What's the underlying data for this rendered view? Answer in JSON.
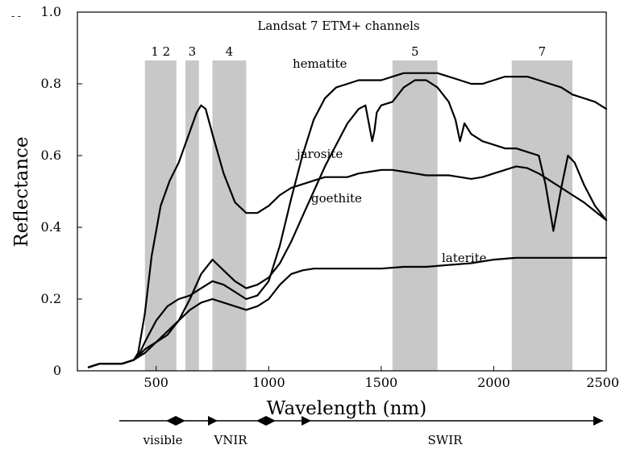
{
  "chart_data": {
    "type": "line",
    "title": "Landsat 7 ETM+ channels",
    "xlabel": "Wavelength (nm)",
    "ylabel": "Reflectance",
    "xlim": [
      150,
      2500
    ],
    "ylim": [
      0,
      1.0
    ],
    "xticks": [
      500,
      1000,
      1500,
      2000,
      2500
    ],
    "yticks": [
      0,
      0.2,
      0.4,
      0.6,
      0.8,
      1.0
    ],
    "xtick_labels": [
      "500",
      "1000",
      "1500",
      "2000",
      "2500"
    ],
    "ytick_labels": [
      "0",
      "0.2",
      "0.4",
      "0.6",
      "0.8",
      "1.0"
    ],
    "grid": false,
    "line_color": "#000000",
    "band_color": "#c8c8c8",
    "bands": [
      {
        "label": "1 2",
        "start": 450,
        "end": 590
      },
      {
        "label": "3",
        "start": 630,
        "end": 690
      },
      {
        "label": "4",
        "start": 750,
        "end": 900
      },
      {
        "label": "5",
        "start": 1550,
        "end": 1750
      },
      {
        "label": "7",
        "start": 2080,
        "end": 2350
      }
    ],
    "series": [
      {
        "name": "hematite",
        "x": [
          200,
          250,
          300,
          350,
          400,
          420,
          450,
          500,
          550,
          600,
          650,
          700,
          750,
          800,
          850,
          900,
          950,
          1000,
          1050,
          1100,
          1150,
          1200,
          1250,
          1300,
          1350,
          1400,
          1450,
          1500,
          1550,
          1600,
          1650,
          1700,
          1750,
          1800,
          1850,
          1900,
          1950,
          2000,
          2050,
          2100,
          2150,
          2200,
          2250,
          2300,
          2350,
          2400,
          2450,
          2500
        ],
        "y": [
          0.01,
          0.02,
          0.02,
          0.02,
          0.03,
          0.04,
          0.08,
          0.14,
          0.18,
          0.2,
          0.21,
          0.23,
          0.25,
          0.24,
          0.22,
          0.2,
          0.21,
          0.25,
          0.35,
          0.48,
          0.6,
          0.7,
          0.76,
          0.79,
          0.8,
          0.81,
          0.81,
          0.81,
          0.82,
          0.83,
          0.83,
          0.83,
          0.83,
          0.82,
          0.81,
          0.8,
          0.8,
          0.81,
          0.82,
          0.82,
          0.82,
          0.81,
          0.8,
          0.79,
          0.77,
          0.76,
          0.75,
          0.73
        ]
      },
      {
        "name": "jarosite",
        "x": [
          200,
          250,
          300,
          350,
          400,
          420,
          450,
          500,
          550,
          600,
          650,
          700,
          750,
          800,
          850,
          900,
          950,
          1000,
          1050,
          1100,
          1150,
          1200,
          1250,
          1300,
          1350,
          1400,
          1430,
          1460,
          1470,
          1480,
          1500,
          1550,
          1600,
          1650,
          1700,
          1750,
          1800,
          1830,
          1850,
          1870,
          1900,
          1950,
          2000,
          2050,
          2100,
          2150,
          2200,
          2230,
          2265,
          2300,
          2330,
          2360,
          2400,
          2450,
          2500
        ],
        "y": [
          0.01,
          0.02,
          0.02,
          0.02,
          0.03,
          0.04,
          0.06,
          0.08,
          0.1,
          0.14,
          0.2,
          0.27,
          0.31,
          0.28,
          0.25,
          0.23,
          0.24,
          0.26,
          0.3,
          0.36,
          0.43,
          0.5,
          0.57,
          0.63,
          0.69,
          0.73,
          0.74,
          0.64,
          0.67,
          0.72,
          0.74,
          0.75,
          0.79,
          0.81,
          0.81,
          0.79,
          0.75,
          0.7,
          0.64,
          0.69,
          0.66,
          0.64,
          0.63,
          0.62,
          0.62,
          0.61,
          0.6,
          0.52,
          0.39,
          0.51,
          0.6,
          0.58,
          0.52,
          0.46,
          0.42
        ]
      },
      {
        "name": "goethite",
        "x": [
          200,
          250,
          300,
          350,
          400,
          420,
          450,
          480,
          520,
          560,
          600,
          640,
          680,
          700,
          720,
          750,
          800,
          850,
          900,
          950,
          1000,
          1050,
          1100,
          1150,
          1200,
          1250,
          1300,
          1350,
          1400,
          1450,
          1500,
          1550,
          1600,
          1650,
          1700,
          1750,
          1800,
          1850,
          1900,
          1950,
          2000,
          2050,
          2100,
          2150,
          2200,
          2250,
          2300,
          2350,
          2400,
          2450,
          2500
        ],
        "y": [
          0.01,
          0.02,
          0.02,
          0.02,
          0.03,
          0.05,
          0.16,
          0.32,
          0.46,
          0.53,
          0.58,
          0.65,
          0.72,
          0.74,
          0.73,
          0.66,
          0.55,
          0.47,
          0.44,
          0.44,
          0.46,
          0.49,
          0.51,
          0.52,
          0.53,
          0.54,
          0.54,
          0.54,
          0.55,
          0.555,
          0.56,
          0.56,
          0.555,
          0.55,
          0.545,
          0.545,
          0.545,
          0.54,
          0.535,
          0.54,
          0.55,
          0.56,
          0.57,
          0.565,
          0.55,
          0.53,
          0.51,
          0.49,
          0.47,
          0.445,
          0.42
        ]
      },
      {
        "name": "laterite",
        "x": [
          200,
          250,
          300,
          350,
          400,
          450,
          500,
          550,
          600,
          650,
          700,
          750,
          800,
          850,
          900,
          950,
          1000,
          1050,
          1100,
          1150,
          1200,
          1250,
          1300,
          1400,
          1500,
          1600,
          1700,
          1800,
          1900,
          2000,
          2100,
          2200,
          2300,
          2400,
          2500
        ],
        "y": [
          0.01,
          0.02,
          0.02,
          0.02,
          0.03,
          0.05,
          0.08,
          0.11,
          0.14,
          0.17,
          0.19,
          0.2,
          0.19,
          0.18,
          0.17,
          0.18,
          0.2,
          0.24,
          0.27,
          0.28,
          0.285,
          0.285,
          0.285,
          0.285,
          0.285,
          0.29,
          0.29,
          0.295,
          0.3,
          0.31,
          0.315,
          0.315,
          0.315,
          0.315,
          0.315
        ]
      }
    ],
    "regions": [
      "visible",
      "VNIR",
      "SWIR"
    ]
  },
  "stray_marks": "- -"
}
